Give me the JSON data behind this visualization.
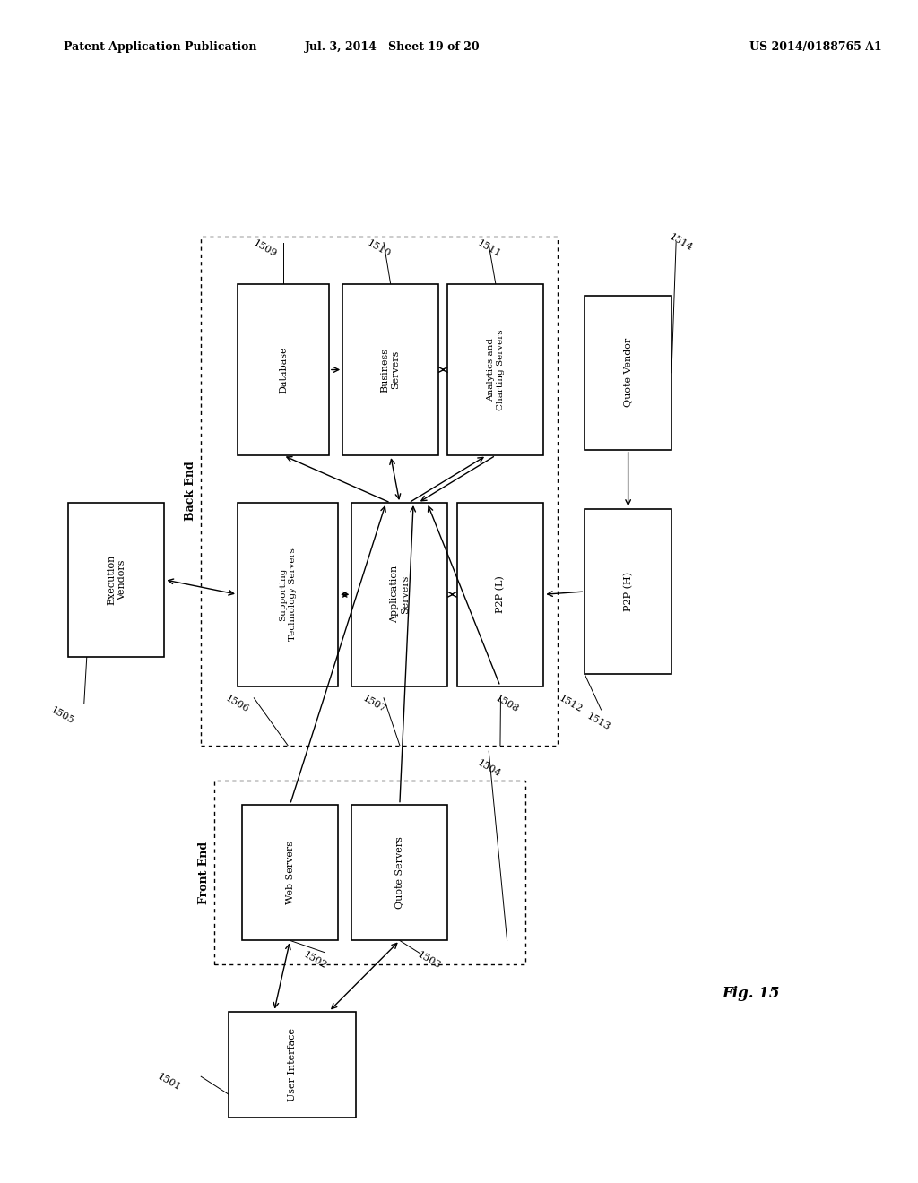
{
  "header_left": "Patent Application Publication",
  "header_mid": "Jul. 3, 2014   Sheet 19 of 20",
  "header_right": "US 2014/0188765 A1",
  "fig_label": "Fig. 15",
  "bg_color": "#ffffff"
}
